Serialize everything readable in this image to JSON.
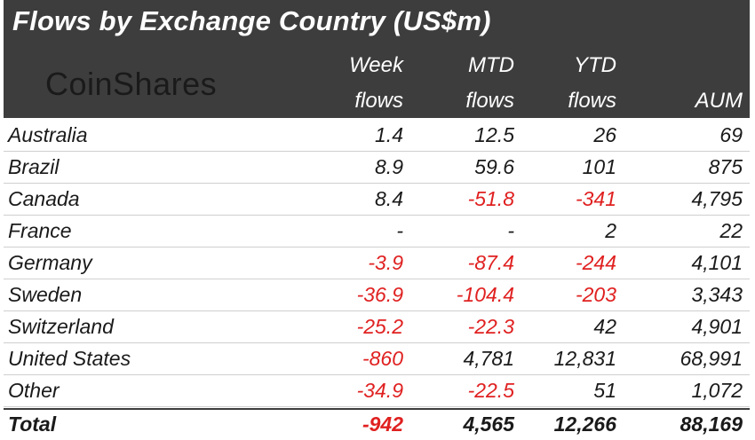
{
  "title": "Flows by Exchange Country (US$m)",
  "logo": "CoinShares",
  "headers": {
    "week": [
      "Week",
      "flows"
    ],
    "mtd": [
      "MTD",
      "flows"
    ],
    "ytd": [
      "YTD",
      "flows"
    ],
    "aum": "AUM"
  },
  "rows": [
    {
      "country": "Australia",
      "week": "1.4",
      "mtd": "12.5",
      "ytd": "26",
      "aum": "69"
    },
    {
      "country": "Brazil",
      "week": "8.9",
      "mtd": "59.6",
      "ytd": "101",
      "aum": "875"
    },
    {
      "country": "Canada",
      "week": "8.4",
      "mtd": "-51.8",
      "ytd": "-341",
      "aum": "4,795"
    },
    {
      "country": "France",
      "week": "-",
      "mtd": "-",
      "ytd": "2",
      "aum": "22"
    },
    {
      "country": "Germany",
      "week": "-3.9",
      "mtd": "-87.4",
      "ytd": "-244",
      "aum": "4,101"
    },
    {
      "country": "Sweden",
      "week": "-36.9",
      "mtd": "-104.4",
      "ytd": "-203",
      "aum": "3,343"
    },
    {
      "country": "Switzerland",
      "week": "-25.2",
      "mtd": "-22.3",
      "ytd": "42",
      "aum": "4,901"
    },
    {
      "country": "United States",
      "week": "-860",
      "mtd": "4,781",
      "ytd": "12,831",
      "aum": "68,991"
    },
    {
      "country": "Other",
      "week": "-34.9",
      "mtd": "-22.5",
      "ytd": "51",
      "aum": "1,072"
    }
  ],
  "total": {
    "label": "Total",
    "week": "-942",
    "mtd": "4,565",
    "ytd": "12,266",
    "aum": "88,169"
  },
  "colors": {
    "header_bg": "#3d3d3d",
    "negative": "#e02020",
    "text": "#1a1a1a"
  }
}
